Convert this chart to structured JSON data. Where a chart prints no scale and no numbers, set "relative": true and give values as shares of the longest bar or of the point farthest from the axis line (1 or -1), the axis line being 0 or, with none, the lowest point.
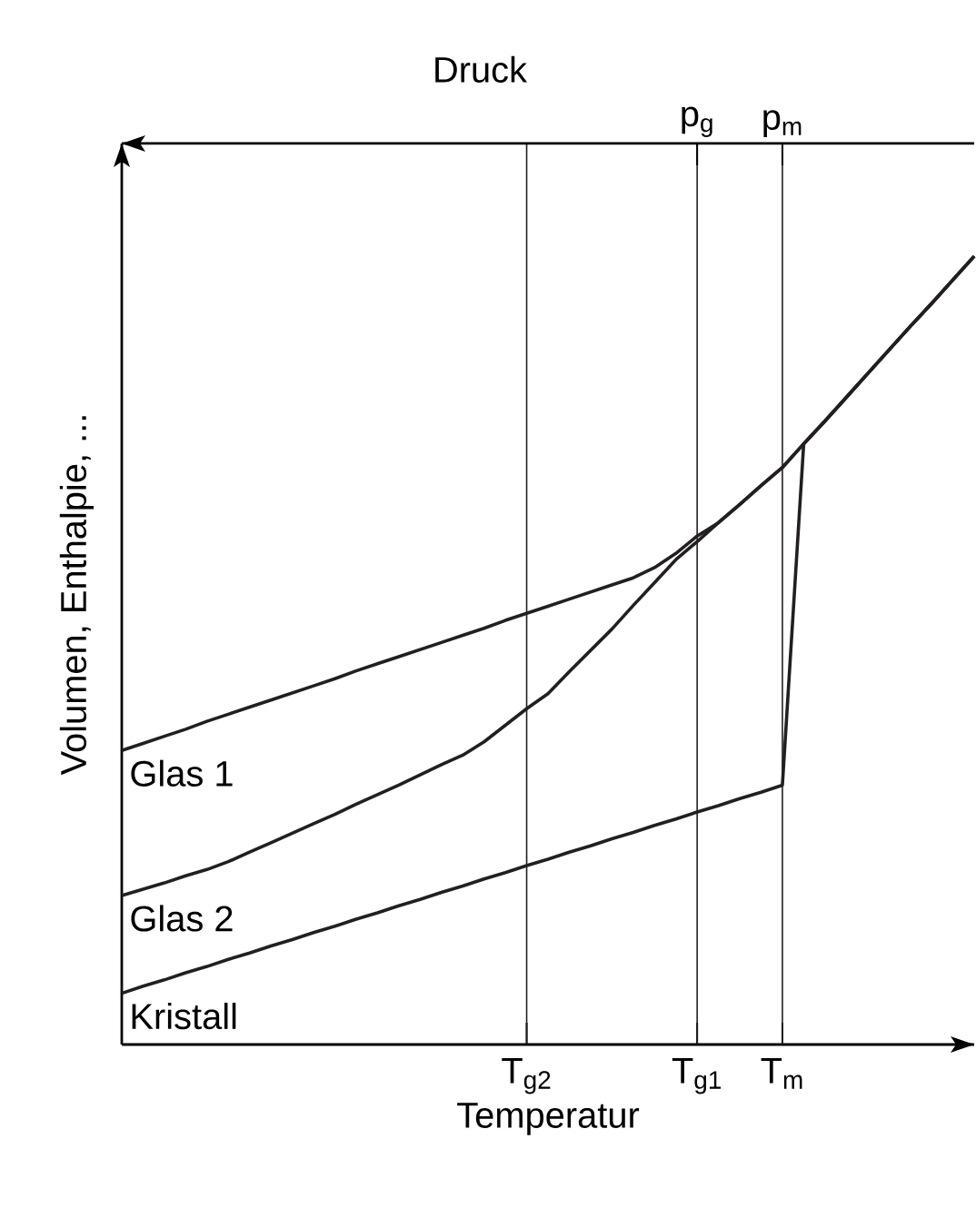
{
  "chart_data": {
    "type": "line",
    "relative": true,
    "xlabel": "Temperatur",
    "ylabel": "Volumen, Enthalpie, ...",
    "x2label": "Druck",
    "categories": [
      null,
      null,
      null,
      null,
      null,
      null,
      null,
      null,
      null,
      null,
      null,
      null,
      null,
      null,
      null,
      null,
      null,
      null,
      null,
      "T$_{g2}$",
      null,
      null,
      null,
      null,
      null,
      null,
      null,
      "T$_{g1}$",
      null,
      null,
      null,
      "T$_{m}$",
      null,
      null,
      null,
      null,
      null,
      null,
      null,
      null,
      null
    ],
    "ref_lines": [
      {
        "axis": "x",
        "value": "T$_{g2}$",
        "color": "#231f20"
      },
      {
        "axis": "x",
        "value": "T$_{g1}$",
        "label": "p$_{g}$",
        "color": "#231f20"
      },
      {
        "axis": "x",
        "value": "T$_{m}$",
        "label": "p$_{m}$",
        "color": "#231f20"
      }
    ],
    "series": [
      {
        "name": "Glas 1",
        "color": "#231f20",
        "values": [
          0.373,
          0.382,
          0.391,
          0.4,
          0.41,
          0.419,
          0.428,
          0.437,
          0.446,
          0.455,
          0.464,
          0.474,
          0.483,
          0.492,
          0.501,
          0.51,
          0.519,
          0.528,
          0.538,
          0.547,
          0.556,
          0.565,
          0.574,
          0.583,
          0.592,
          0.605,
          0.623,
          0.645,
          0.662,
          0.685,
          0.709,
          0.732,
          0.762,
          0.791,
          0.821,
          0.851,
          0.881,
          0.911,
          0.94,
          0.97,
          1
        ]
      },
      {
        "name": "Glas 2",
        "color": "#231f20",
        "values": [
          0.189,
          0.197,
          0.205,
          0.214,
          0.222,
          0.232,
          0.244,
          0.256,
          0.268,
          0.28,
          0.292,
          0.305,
          0.317,
          0.329,
          0.342,
          0.355,
          0.367,
          0.384,
          0.405,
          0.426,
          0.445,
          0.473,
          0.5,
          0.527,
          0.557,
          0.586,
          0.615,
          0.638,
          0.662,
          0.685,
          0.709,
          0.732,
          0.762,
          0.791,
          0.821,
          0.851,
          0.881,
          0.911,
          0.94,
          0.97,
          1
        ]
      },
      {
        "name": "Kristall",
        "color": "#231f20",
        "values": [
          0.065,
          0.074,
          0.082,
          0.091,
          0.099,
          0.108,
          0.116,
          0.125,
          0.133,
          0.142,
          0.15,
          0.159,
          0.167,
          0.176,
          0.184,
          0.193,
          0.201,
          0.21,
          0.218,
          0.227,
          0.235,
          0.244,
          0.252,
          0.261,
          0.269,
          0.278,
          0.286,
          0.295,
          0.303,
          0.312,
          0.32,
          0.329,
          0.762,
          0.791,
          0.821,
          0.851,
          0.881,
          0.911,
          0.94,
          0.97,
          1
        ]
      }
    ]
  }
}
